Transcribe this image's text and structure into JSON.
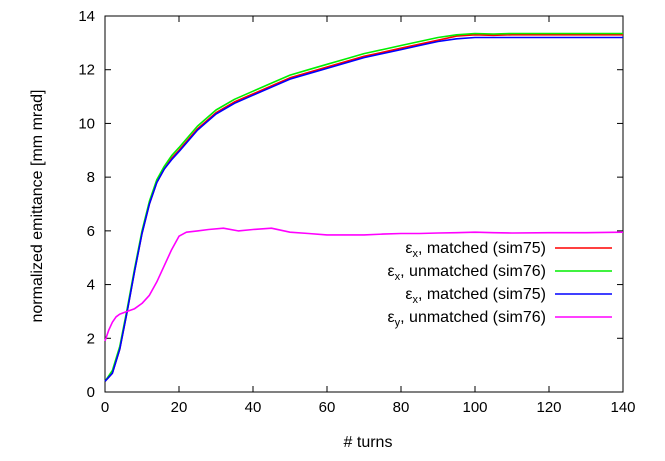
{
  "chart_data": {
    "type": "line",
    "xlabel": "# turns",
    "ylabel": "normalized emittance [mm mrad]",
    "xlim": [
      0,
      140
    ],
    "ylim": [
      0,
      14
    ],
    "xticks": [
      "0",
      "20",
      "40",
      "60",
      "80",
      "100",
      "120",
      "140"
    ],
    "yticks": [
      "0",
      "2",
      "4",
      "6",
      "8",
      "10",
      "12",
      "14"
    ],
    "grid": false,
    "legend_position": "right-middle",
    "series": [
      {
        "name": "εx, matched (sim75)",
        "label_main": "ε",
        "label_sub": "x",
        "label_rest": ", matched   (sim75)",
        "color": "#ff0000",
        "x": [
          0,
          2,
          4,
          6,
          8,
          10,
          12,
          14,
          16,
          18,
          20,
          25,
          30,
          35,
          40,
          45,
          50,
          55,
          60,
          65,
          70,
          75,
          80,
          85,
          90,
          95,
          100,
          105,
          110,
          120,
          130,
          140
        ],
        "y": [
          0.4,
          0.7,
          1.6,
          3.0,
          4.5,
          5.9,
          7.0,
          7.8,
          8.3,
          8.7,
          9.0,
          9.8,
          10.4,
          10.8,
          11.1,
          11.4,
          11.7,
          11.9,
          12.1,
          12.3,
          12.5,
          12.65,
          12.8,
          12.95,
          13.1,
          13.25,
          13.3,
          13.28,
          13.3,
          13.3,
          13.3,
          13.3
        ]
      },
      {
        "name": "εx, unmatched (sim76)",
        "label_main": "ε",
        "label_sub": "x",
        "label_rest": ", unmatched (sim76)",
        "color": "#00ee00",
        "x": [
          0,
          2,
          4,
          6,
          8,
          10,
          12,
          14,
          16,
          18,
          20,
          25,
          30,
          35,
          40,
          45,
          50,
          55,
          60,
          65,
          70,
          75,
          80,
          85,
          90,
          95,
          100,
          105,
          110,
          120,
          130,
          140
        ],
        "y": [
          0.4,
          0.8,
          1.7,
          3.1,
          4.6,
          6.0,
          7.1,
          7.9,
          8.4,
          8.8,
          9.1,
          9.9,
          10.5,
          10.9,
          11.2,
          11.5,
          11.8,
          12.0,
          12.2,
          12.4,
          12.6,
          12.75,
          12.9,
          13.05,
          13.2,
          13.3,
          13.35,
          13.33,
          13.35,
          13.35,
          13.35,
          13.35
        ]
      },
      {
        "name": "εx, matched (sim75)",
        "label_main": "ε",
        "label_sub": "x",
        "label_rest": ", matched   (sim75)",
        "color": "#0000ff",
        "x": [
          0,
          2,
          4,
          6,
          8,
          10,
          12,
          14,
          16,
          18,
          20,
          25,
          30,
          35,
          40,
          45,
          50,
          55,
          60,
          65,
          70,
          75,
          80,
          85,
          90,
          95,
          100,
          105,
          110,
          120,
          130,
          140
        ],
        "y": [
          0.4,
          0.7,
          1.6,
          3.0,
          4.5,
          5.9,
          7.0,
          7.8,
          8.3,
          8.65,
          8.95,
          9.75,
          10.35,
          10.75,
          11.05,
          11.35,
          11.65,
          11.85,
          12.05,
          12.25,
          12.45,
          12.6,
          12.75,
          12.9,
          13.05,
          13.15,
          13.2,
          13.2,
          13.2,
          13.2,
          13.2,
          13.2
        ]
      },
      {
        "name": "εy, unmatched (sim76)",
        "label_main": "ε",
        "label_sub": "y",
        "label_rest": ", unmatched (sim76)",
        "color": "#ff00ff",
        "x": [
          0,
          1,
          2,
          3,
          4,
          6,
          8,
          10,
          12,
          14,
          16,
          18,
          20,
          22,
          25,
          28,
          32,
          36,
          40,
          45,
          50,
          55,
          60,
          65,
          70,
          75,
          80,
          85,
          90,
          95,
          100,
          105,
          110,
          120,
          130,
          140
        ],
        "y": [
          1.9,
          2.3,
          2.6,
          2.8,
          2.9,
          3.0,
          3.1,
          3.3,
          3.6,
          4.1,
          4.7,
          5.3,
          5.8,
          5.95,
          6.0,
          6.05,
          6.1,
          6.0,
          6.05,
          6.1,
          5.95,
          5.9,
          5.85,
          5.85,
          5.85,
          5.88,
          5.9,
          5.9,
          5.92,
          5.93,
          5.95,
          5.93,
          5.92,
          5.93,
          5.93,
          5.95
        ]
      }
    ]
  }
}
